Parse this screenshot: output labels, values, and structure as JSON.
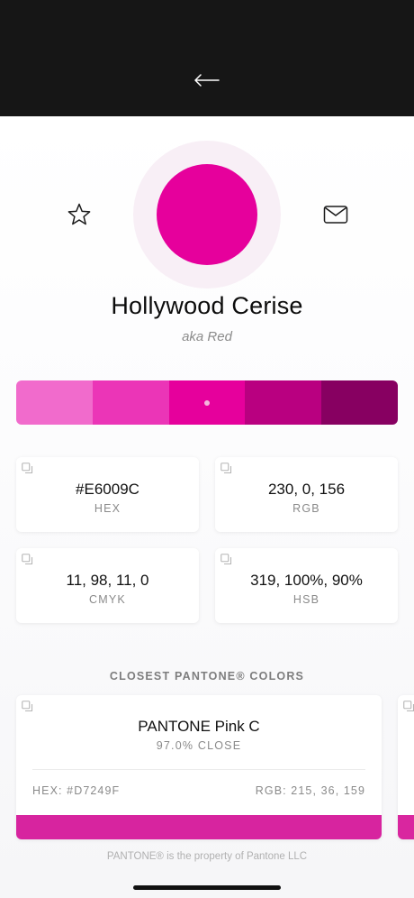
{
  "header": {
    "back_icon": "arrow-left-icon"
  },
  "color": {
    "name": "Hollywood Cerise",
    "alias": "aka Red",
    "hex_color": "#E6009C",
    "halo_color": "#F8EFF6"
  },
  "actions": {
    "favorite_icon": "star-icon",
    "share_icon": "mail-icon"
  },
  "shades": [
    {
      "color": "#F16BCC"
    },
    {
      "color": "#EB35B7"
    },
    {
      "color": "#E6009C",
      "selected": true
    },
    {
      "color": "#B90080"
    },
    {
      "color": "#870061"
    }
  ],
  "codes": [
    {
      "value": "#E6009C",
      "label": "HEX"
    },
    {
      "value": "230, 0, 156",
      "label": "RGB"
    },
    {
      "value": "11, 98, 11, 0",
      "label": "CMYK"
    },
    {
      "value": "319, 100%, 90%",
      "label": "HSB"
    }
  ],
  "pantone": {
    "section_title": "CLOSEST PANTONE® COLORS",
    "cards": [
      {
        "name": "PANTONE Pink C",
        "closeness": "97.0% CLOSE",
        "hex_text": "HEX: #D7249F",
        "rgb_text": "RGB: 215, 36, 159",
        "color": "#D7249F"
      }
    ],
    "next_card_color": "#D9269F"
  },
  "footer": {
    "text": "PANTONE® is the property of Pantone LLC"
  }
}
